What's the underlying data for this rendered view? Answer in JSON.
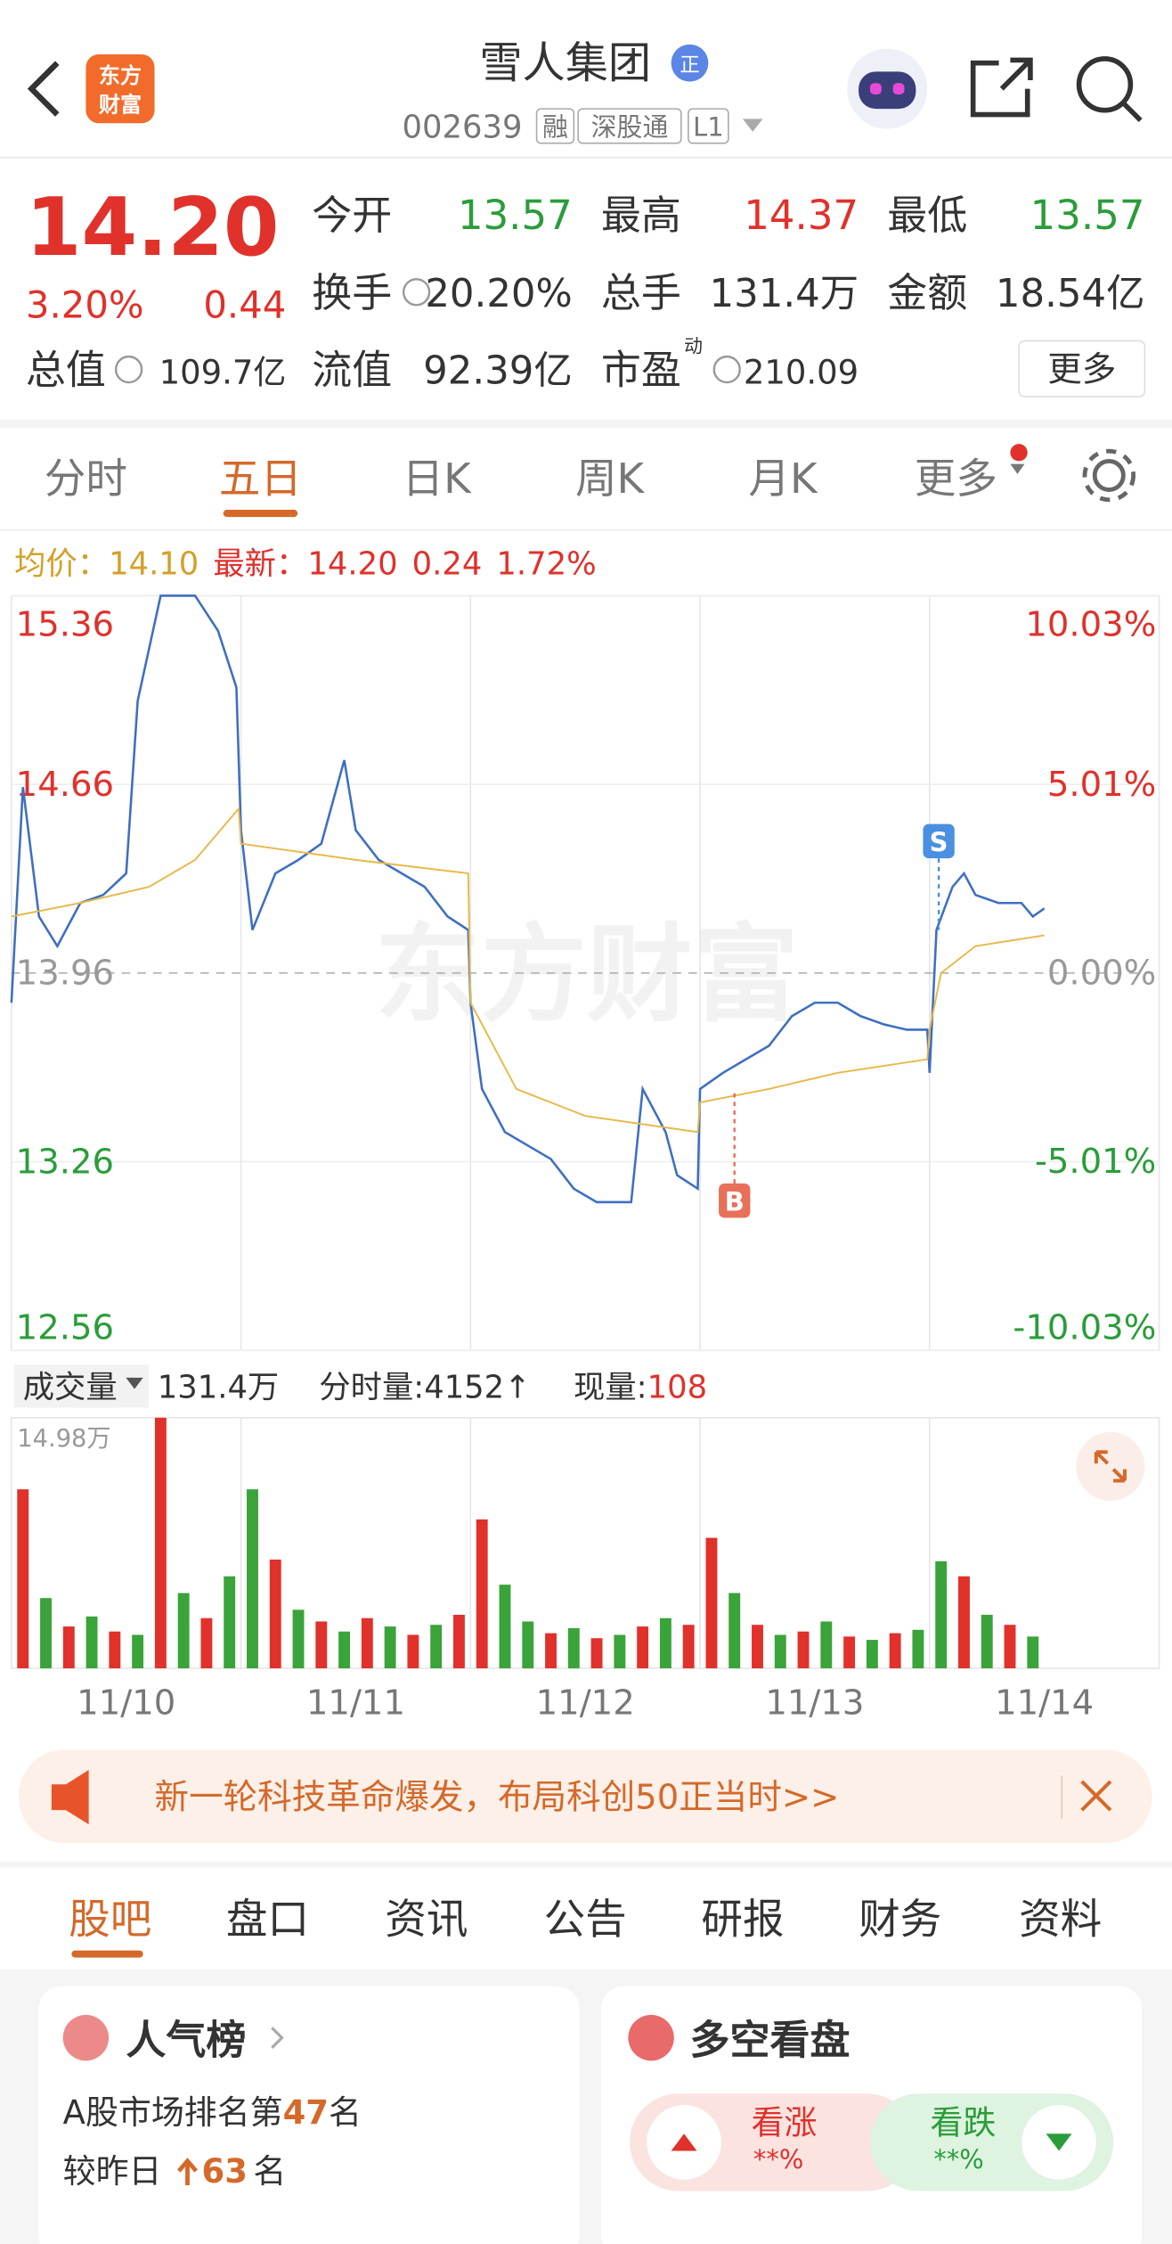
{
  "header": {
    "logo": [
      "东方",
      "财富"
    ],
    "title": "雪人集团",
    "badge": "正",
    "code": "002639",
    "tags": [
      "融",
      "深股通",
      "L1"
    ]
  },
  "quote": {
    "price": "14.20",
    "change_pct": "3.20%",
    "change": "0.44",
    "fields": [
      {
        "label": "今开",
        "value": "13.57"
      },
      {
        "label": "最高",
        "value": "14.37"
      },
      {
        "label": "最低",
        "value": "13.57"
      },
      {
        "label": "换手",
        "value": "20.20%"
      },
      {
        "label": "总手",
        "value": "131.4万"
      },
      {
        "label": "金额",
        "value": "18.54亿"
      },
      {
        "label": "总值",
        "value": "109.7亿"
      },
      {
        "label": "流值",
        "value": "92.39亿"
      },
      {
        "label": "市盈",
        "sup": "动",
        "value": "210.09"
      }
    ],
    "more": "更多"
  },
  "tabs": {
    "items": [
      "分时",
      "五日",
      "日K",
      "周K",
      "月K",
      "更多"
    ]
  },
  "info": {
    "avg_label": "均价：",
    "avg": "14.10",
    "latest_label": "最新：",
    "latest": "14.20",
    "change": "0.24",
    "change_pct": "1.72%"
  },
  "watermark": "东方财富",
  "chart_data": [
    {
      "type": "line",
      "xlim": [
        0,
        5
      ],
      "ylim": [
        12.56,
        15.36
      ],
      "yticks": [
        12.56,
        13.26,
        13.96,
        14.66,
        15.36
      ],
      "y2lim": [
        -10.03,
        10.03
      ],
      "y2ticks": [
        {
          "value": -10.03,
          "label": "-10.03%"
        },
        {
          "value": -5.01,
          "label": "-5.01%"
        },
        {
          "value": 0,
          "label": "0.00%"
        },
        {
          "value": 5.01,
          "label": "5.01%"
        },
        {
          "value": 10.03,
          "label": "10.03%"
        }
      ],
      "grid": true,
      "series": [
        {
          "color": "#3e6fc2",
          "x": [
            0,
            0.05,
            0.12,
            0.2,
            0.3,
            0.4,
            0.5,
            0.55,
            0.65,
            0.8,
            0.9,
            0.98,
            1.0,
            1.05,
            1.15,
            1.25,
            1.35,
            1.45,
            1.5,
            1.6,
            1.7,
            1.8,
            1.9,
            1.99,
            2.0,
            2.05,
            2.15,
            2.25,
            2.35,
            2.45,
            2.55,
            2.7,
            2.75,
            2.85,
            2.9,
            2.99,
            3.0,
            3.1,
            3.2,
            3.3,
            3.4,
            3.5,
            3.6,
            3.7,
            3.8,
            3.9,
            3.99,
            4.0,
            4.03,
            4.1,
            4.15,
            4.2,
            4.3,
            4.4,
            4.45,
            4.5
          ],
          "values": [
            13.85,
            14.65,
            14.17,
            14.06,
            14.22,
            14.25,
            14.33,
            14.97,
            15.36,
            15.36,
            15.23,
            15.02,
            14.49,
            14.12,
            14.33,
            14.38,
            14.44,
            14.75,
            14.49,
            14.38,
            14.33,
            14.28,
            14.17,
            14.12,
            13.85,
            13.53,
            13.37,
            13.32,
            13.27,
            13.16,
            13.11,
            13.11,
            13.53,
            13.37,
            13.21,
            13.16,
            13.53,
            13.59,
            13.64,
            13.69,
            13.8,
            13.85,
            13.85,
            13.8,
            13.77,
            13.75,
            13.75,
            13.59,
            14.12,
            14.28,
            14.33,
            14.25,
            14.22,
            14.22,
            14.17,
            14.2
          ]
        },
        {
          "color": "#e8b84a",
          "x": [
            0,
            0.3,
            0.6,
            0.8,
            0.99,
            1.0,
            1.5,
            1.99,
            2.0,
            2.2,
            2.5,
            2.99,
            3.0,
            3.3,
            3.6,
            3.99,
            4.0,
            4.05,
            4.2,
            4.5
          ],
          "values": [
            14.17,
            14.22,
            14.28,
            14.38,
            14.57,
            14.44,
            14.38,
            14.33,
            13.85,
            13.53,
            13.43,
            13.37,
            13.48,
            13.53,
            13.59,
            13.64,
            13.75,
            13.96,
            14.06,
            14.1
          ]
        }
      ],
      "markers": [
        {
          "label": "S",
          "x": 4.04,
          "value": 14.12,
          "color": "#4a90e2"
        },
        {
          "label": "B",
          "x": 3.15,
          "value": 13.53,
          "color": "#e8705a"
        }
      ]
    },
    {
      "type": "bar",
      "xlim": [
        0,
        5
      ],
      "ylim": [
        0,
        14.98
      ],
      "yticks": [
        {
          "value": 14.98,
          "label": "14.98万"
        }
      ],
      "xticks": [
        {
          "value": 0.5,
          "label": "11/10"
        },
        {
          "value": 1.5,
          "label": "11/11"
        },
        {
          "value": 2.5,
          "label": "11/12"
        },
        {
          "value": 3.5,
          "label": "11/13"
        },
        {
          "value": 4.5,
          "label": "11/14"
        }
      ],
      "x": [
        0.05,
        0.15,
        0.25,
        0.35,
        0.45,
        0.55,
        0.65,
        0.75,
        0.85,
        0.95,
        1.05,
        1.15,
        1.25,
        1.35,
        1.45,
        1.55,
        1.65,
        1.75,
        1.85,
        1.95,
        2.05,
        2.15,
        2.25,
        2.35,
        2.45,
        2.55,
        2.65,
        2.75,
        2.85,
        2.95,
        3.05,
        3.15,
        3.25,
        3.35,
        3.45,
        3.55,
        3.65,
        3.75,
        3.85,
        3.95,
        4.05,
        4.15,
        4.25,
        4.35,
        4.45
      ],
      "values": [
        10.7,
        4.2,
        2.5,
        3.1,
        2.2,
        2.0,
        14.98,
        4.5,
        3.0,
        5.5,
        10.7,
        6.5,
        3.5,
        2.8,
        2.2,
        3.0,
        2.5,
        2.0,
        2.6,
        3.2,
        8.9,
        5.0,
        2.8,
        2.1,
        2.4,
        1.8,
        2.0,
        2.5,
        3.0,
        2.6,
        7.8,
        4.5,
        2.6,
        2.0,
        2.2,
        2.8,
        1.9,
        1.7,
        2.1,
        2.3,
        6.4,
        5.5,
        3.2,
        2.6,
        1.9
      ],
      "colors": [
        "#e0312b",
        "#3aa33a",
        "#e0312b",
        "#3aa33a",
        "#e0312b",
        "#3aa33a",
        "#e0312b",
        "#3aa33a",
        "#e0312b",
        "#3aa33a",
        "#3aa33a",
        "#e0312b",
        "#3aa33a",
        "#e0312b",
        "#3aa33a",
        "#e0312b",
        "#3aa33a",
        "#e0312b",
        "#3aa33a",
        "#e0312b",
        "#e0312b",
        "#3aa33a",
        "#3aa33a",
        "#e0312b",
        "#3aa33a",
        "#e0312b",
        "#3aa33a",
        "#e0312b",
        "#3aa33a",
        "#e0312b",
        "#e0312b",
        "#3aa33a",
        "#e0312b",
        "#3aa33a",
        "#e0312b",
        "#3aa33a",
        "#e0312b",
        "#3aa33a",
        "#e0312b",
        "#3aa33a",
        "#3aa33a",
        "#e0312b",
        "#3aa33a",
        "#e0312b",
        "#3aa33a"
      ]
    }
  ],
  "volume_header": {
    "selector": "成交量",
    "total": "131.4万",
    "tick_label": "分时量:",
    "tick": "4152↑",
    "now_label": "现量:",
    "now": "108"
  },
  "banner": {
    "text": "新一轮科技革命爆发，布局科创50正当时>>"
  },
  "bottom_tabs": {
    "items": [
      "股吧",
      "盘口",
      "资讯",
      "公告",
      "研报",
      "财务",
      "资料"
    ]
  },
  "cards": {
    "popularity": {
      "title": "人气榜",
      "rank_prefix": "A股市场排名第",
      "rank": "47",
      "rank_suffix": "名",
      "change_prefix": "较昨日",
      "change": "63",
      "change_suffix": "名"
    },
    "sentiment": {
      "title": "多空看盘",
      "up": "看涨",
      "up_pct": "**%",
      "down": "看跌",
      "down_pct": "**%"
    }
  }
}
